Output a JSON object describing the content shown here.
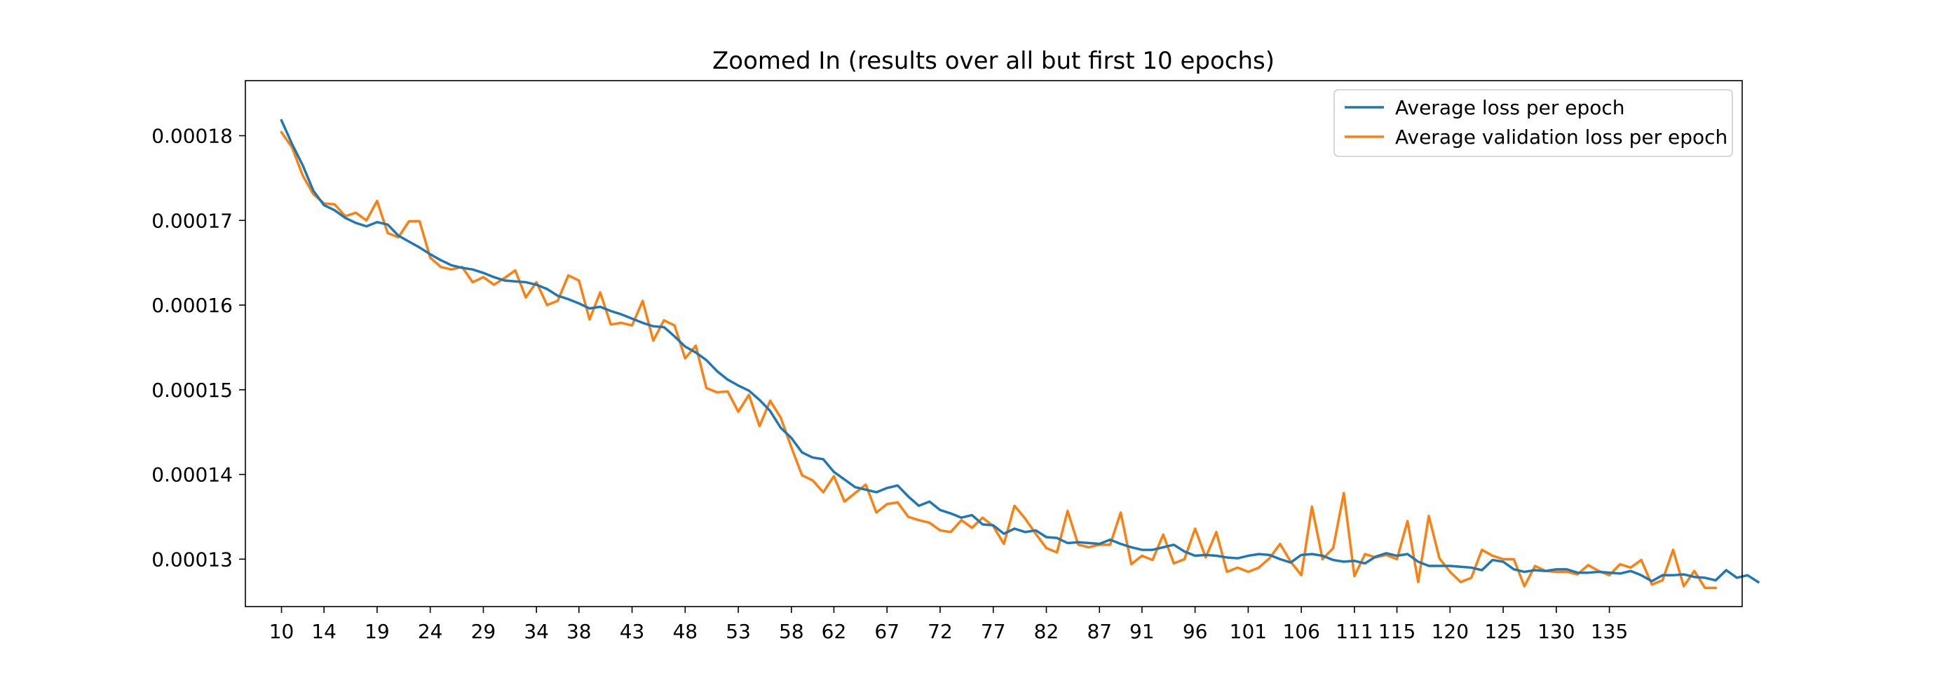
{
  "chart_data": {
    "type": "line",
    "title": "Zoomed In (results over all but first 10 epochs)",
    "xlabel": "",
    "ylabel": "",
    "xlim": [
      6.6,
      147.5
    ],
    "ylim": [
      0.0001244,
      0.0001865
    ],
    "x_ticks": [
      10,
      14,
      19,
      24,
      29,
      34,
      38,
      43,
      48,
      53,
      58,
      62,
      67,
      72,
      77,
      82,
      87,
      91,
      96,
      101,
      106,
      111,
      115,
      120,
      125,
      130,
      135
    ],
    "y_ticks": [
      0.00013,
      0.00014,
      0.00015,
      0.00016,
      0.00017,
      0.00018
    ],
    "y_tick_labels": [
      "0.00013",
      "0.00014",
      "0.00015",
      "0.00016",
      "0.00017",
      "0.00018"
    ],
    "grid": false,
    "legend_position": "upper right",
    "x_start": 10,
    "series": [
      {
        "name": "Average loss per epoch",
        "color": "#1f77b4",
        "values": [
          0.0001818,
          0.000179,
          0.0001765,
          0.0001735,
          0.0001718,
          0.0001712,
          0.0001703,
          0.0001697,
          0.0001693,
          0.0001698,
          0.0001695,
          0.0001682,
          0.0001675,
          0.0001668,
          0.000166,
          0.0001653,
          0.0001647,
          0.0001644,
          0.0001642,
          0.0001638,
          0.0001633,
          0.0001629,
          0.0001628,
          0.0001627,
          0.0001624,
          0.0001619,
          0.0001611,
          0.0001607,
          0.0001602,
          0.0001596,
          0.0001598,
          0.0001593,
          0.0001589,
          0.0001584,
          0.0001579,
          0.0001575,
          0.0001574,
          0.0001563,
          0.0001551,
          0.0001544,
          0.0001535,
          0.0001522,
          0.0001512,
          0.0001505,
          0.0001499,
          0.0001488,
          0.0001475,
          0.0001455,
          0.0001443,
          0.0001426,
          0.000142,
          0.0001418,
          0.0001403,
          0.0001394,
          0.0001385,
          0.0001382,
          0.0001379,
          0.0001384,
          0.0001387,
          0.0001374,
          0.0001363,
          0.0001368,
          0.0001358,
          0.0001354,
          0.0001349,
          0.0001352,
          0.0001341,
          0.000134,
          0.000133,
          0.0001336,
          0.0001332,
          0.0001334,
          0.0001326,
          0.0001325,
          0.0001319,
          0.000132,
          0.0001319,
          0.0001318,
          0.0001323,
          0.0001318,
          0.0001314,
          0.0001311,
          0.0001311,
          0.0001314,
          0.0001317,
          0.0001309,
          0.0001304,
          0.0001305,
          0.0001304,
          0.0001302,
          0.0001301,
          0.0001304,
          0.0001306,
          0.0001305,
          0.00013,
          0.0001296,
          0.0001305,
          0.0001306,
          0.0001304,
          0.0001299,
          0.0001297,
          0.0001298,
          0.0001295,
          0.0001303,
          0.0001307,
          0.0001304,
          0.0001306,
          0.0001297,
          0.0001292,
          0.0001292,
          0.0001292,
          0.0001291,
          0.000129,
          0.0001287,
          0.0001299,
          0.0001297,
          0.0001288,
          0.0001285,
          0.0001287,
          0.0001286,
          0.0001288,
          0.0001288,
          0.0001284,
          0.0001284,
          0.0001285,
          0.0001284,
          0.0001283,
          0.0001286,
          0.0001281,
          0.0001274,
          0.0001281,
          0.0001281,
          0.0001282,
          0.0001279,
          0.0001278,
          0.0001275,
          0.0001287,
          0.0001278,
          0.0001281,
          0.0001273
        ]
      },
      {
        "name": "Average validation loss per epoch",
        "color": "#ff7f0e",
        "values": [
          0.0001804,
          0.0001786,
          0.0001753,
          0.0001731,
          0.000172,
          0.0001719,
          0.0001705,
          0.0001709,
          0.00017,
          0.0001723,
          0.0001685,
          0.000168,
          0.0001699,
          0.0001699,
          0.0001656,
          0.0001645,
          0.0001642,
          0.0001645,
          0.0001627,
          0.0001633,
          0.0001624,
          0.0001632,
          0.0001641,
          0.0001609,
          0.0001627,
          0.00016,
          0.0001605,
          0.0001635,
          0.0001629,
          0.0001583,
          0.0001615,
          0.0001577,
          0.0001579,
          0.0001576,
          0.0001605,
          0.0001558,
          0.0001582,
          0.0001576,
          0.0001537,
          0.0001552,
          0.0001502,
          0.0001497,
          0.0001498,
          0.0001474,
          0.0001494,
          0.0001457,
          0.0001487,
          0.0001467,
          0.0001432,
          0.0001399,
          0.0001393,
          0.0001379,
          0.0001398,
          0.0001368,
          0.0001378,
          0.0001388,
          0.0001355,
          0.0001365,
          0.0001367,
          0.000135,
          0.0001346,
          0.0001343,
          0.0001334,
          0.0001332,
          0.0001346,
          0.0001337,
          0.0001349,
          0.0001339,
          0.0001318,
          0.0001363,
          0.0001348,
          0.000133,
          0.0001313,
          0.0001308,
          0.0001357,
          0.0001317,
          0.0001314,
          0.0001317,
          0.0001317,
          0.0001355,
          0.0001294,
          0.0001304,
          0.0001299,
          0.0001329,
          0.0001295,
          0.00013,
          0.0001336,
          0.0001302,
          0.0001332,
          0.0001285,
          0.000129,
          0.0001285,
          0.000129,
          0.0001301,
          0.0001318,
          0.0001297,
          0.0001281,
          0.0001362,
          0.00013,
          0.0001313,
          0.0001378,
          0.000128,
          0.0001306,
          0.0001302,
          0.0001305,
          0.00013,
          0.0001345,
          0.0001273,
          0.0001351,
          0.0001301,
          0.0001285,
          0.0001273,
          0.0001278,
          0.0001311,
          0.0001304,
          0.00013,
          0.00013,
          0.0001268,
          0.0001292,
          0.0001286,
          0.0001285,
          0.0001285,
          0.0001282,
          0.0001293,
          0.0001286,
          0.0001281,
          0.0001294,
          0.000129,
          0.0001299,
          0.000127,
          0.0001275,
          0.0001311,
          0.0001268,
          0.0001286,
          0.0001266,
          0.0001266
        ]
      }
    ]
  }
}
